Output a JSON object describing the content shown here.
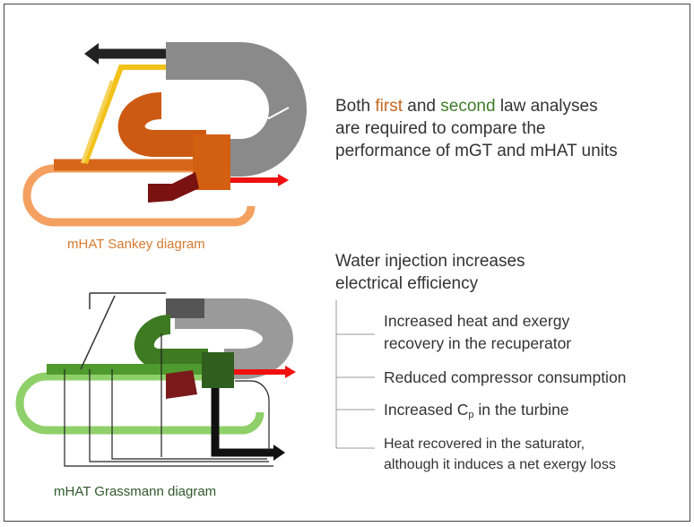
{
  "statement": {
    "line1": {
      "before": "Both",
      "first": "first",
      "middle": "and",
      "second": "second",
      "after": "law analyses"
    },
    "line2": "are required to compare the",
    "line3": "performance of mGT and mHAT units"
  },
  "sankey": {
    "caption": "mHAT Sankey diagram"
  },
  "water": {
    "line1": "Water injection increases",
    "line2": "electrical efficiency"
  },
  "effects": [
    {
      "line1": "Increased heat and exergy",
      "line2": "recovery in the recuperator"
    },
    {
      "line1": "Reduced compressor consumption"
    },
    {
      "before": "Increased C",
      "sub": "p",
      "after": "in the turbine"
    },
    {
      "line1": "Heat recovered in the saturator,",
      "line2": "although it induces a net exergy loss"
    }
  ],
  "grassmann": {
    "caption": "mHAT Grassmann diagram"
  }
}
